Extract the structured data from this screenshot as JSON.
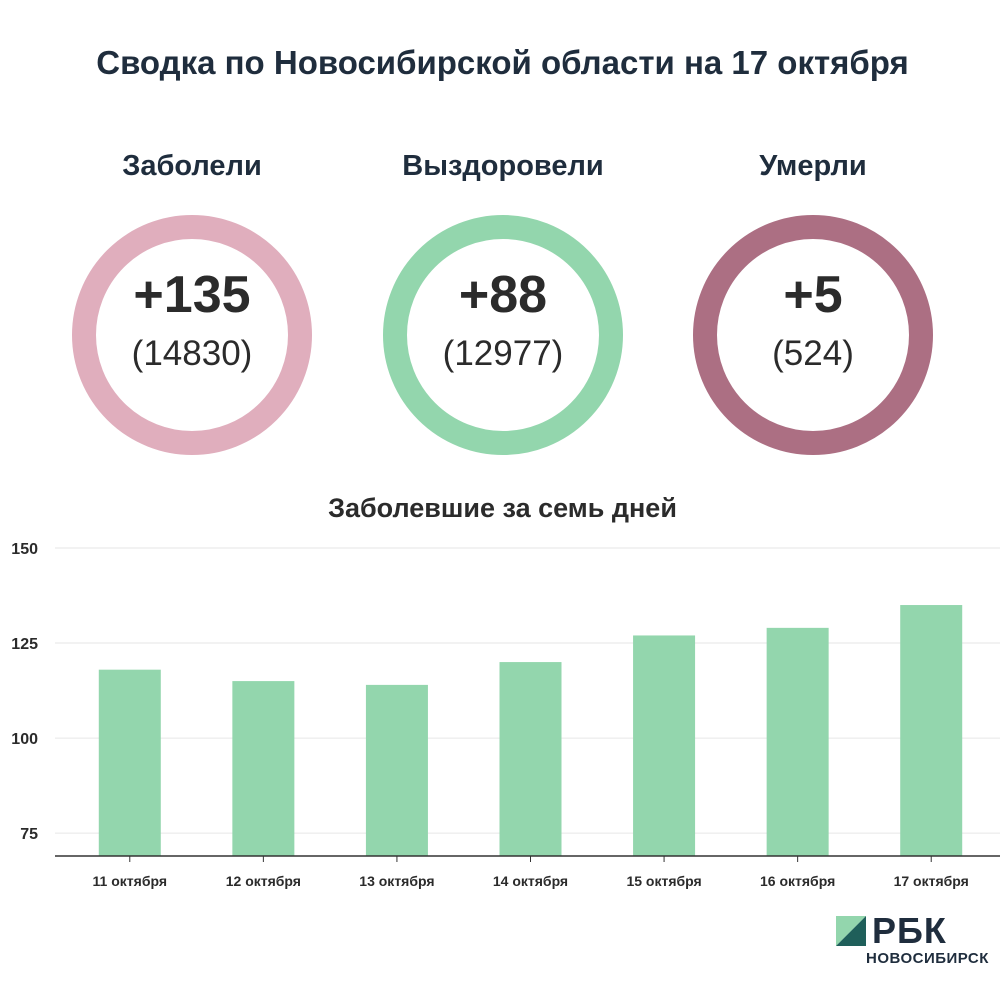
{
  "title": "Сводка по Новосибирской области на 17 октября",
  "stats": [
    {
      "label": "Заболели",
      "delta": "+135",
      "total": "(14830)",
      "color": "#e0aebd"
    },
    {
      "label": "Выздоровели",
      "delta": "+88",
      "total": "(12977)",
      "color": "#93d6ad"
    },
    {
      "label": "Умерли",
      "delta": "+5",
      "total": "(524)",
      "color": "#ac6f83"
    }
  ],
  "chart_data": {
    "type": "bar",
    "title": "Заболевшие за семь дней",
    "categories": [
      "11 октября",
      "12 октября",
      "13 октября",
      "14 октября",
      "15 октября",
      "16 октября",
      "17 октября"
    ],
    "values": [
      118,
      115,
      114,
      120,
      127,
      129,
      135
    ],
    "yticks": [
      75,
      100,
      125,
      150
    ],
    "ylim": [
      69,
      150
    ],
    "bar_color": "#93d6ad",
    "grid": true,
    "xlabel": "",
    "ylabel": ""
  },
  "logo": {
    "text": "РБК",
    "subtitle": "НОВОСИБИРСК"
  }
}
